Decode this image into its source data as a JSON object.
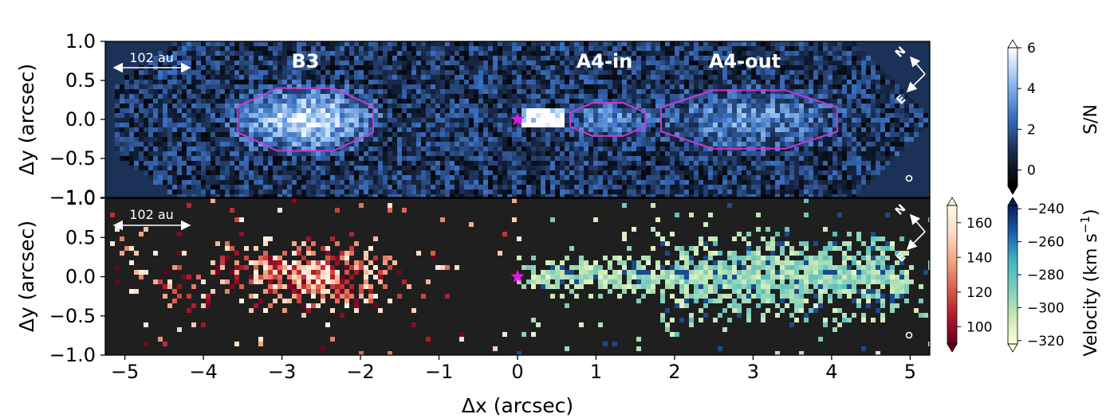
{
  "chart_data": [
    {
      "type": "heatmap",
      "panel": "top",
      "ylabel": "Δy (arcsec)",
      "xlim": [
        -5.25,
        5.25
      ],
      "ylim": [
        -1.0,
        1.0
      ],
      "yticks": [
        "1.0",
        "0.5",
        "0.0",
        "−0.5",
        "−1.0"
      ],
      "colorbar": {
        "label": "S/N",
        "range": [
          -0.8,
          6
        ],
        "ticks": [
          "6",
          "4",
          "2",
          "0"
        ],
        "tick_values": [
          6,
          4,
          2,
          0
        ],
        "colors": [
          "#000000",
          "#1a2b4c",
          "#3a6fc0",
          "#8fbcef",
          "#ffffff"
        ]
      },
      "regions": [
        {
          "label": "B3",
          "x_center": -2.7,
          "x_half_width": 0.9,
          "y_half_height": 0.42
        },
        {
          "label": "A4-in",
          "x_center": 1.15,
          "x_half_width": 0.5,
          "y_half_height": 0.22
        },
        {
          "label": "A4-out",
          "x_center": 2.95,
          "x_half_width": 1.17,
          "y_half_height": 0.39
        }
      ],
      "scale_bar": "102 au",
      "compass": {
        "north": "N",
        "east": "E"
      },
      "star": {
        "x": 0.0,
        "y": 0.0
      }
    },
    {
      "type": "heatmap",
      "panel": "bottom",
      "xlabel": "Δx (arcsec)",
      "ylabel": "Δy (arcsec)",
      "xlim": [
        -5.25,
        5.25
      ],
      "ylim": [
        -1.0,
        1.0
      ],
      "xticks": [
        "−5",
        "−4",
        "−3",
        "−2",
        "−1",
        "0",
        "1",
        "2",
        "3",
        "4",
        "5"
      ],
      "xtick_values": [
        -5,
        -4,
        -3,
        -2,
        -1,
        0,
        1,
        2,
        3,
        4,
        5
      ],
      "yticks": [
        "1.0",
        "0.5",
        "0.0",
        "−0.5",
        "−1.0"
      ],
      "colorbar_redshifted": {
        "range": [
          90,
          170
        ],
        "ticks": [
          "160",
          "140",
          "120",
          "100"
        ],
        "tick_values": [
          160,
          140,
          120,
          100
        ],
        "colors": [
          "#67001f",
          "#b2182b",
          "#d6604d",
          "#f4a582",
          "#fddbc7",
          "#fff8e6"
        ]
      },
      "colorbar_blueshifted": {
        "label": "Velocity (km s",
        "label_sup": "−1",
        "label_end": ")",
        "range": [
          -322,
          -238
        ],
        "ticks": [
          "−240",
          "−260",
          "−280",
          "−300",
          "−320"
        ],
        "tick_values": [
          -240,
          -260,
          -280,
          -300,
          -320
        ],
        "colors": [
          "#ffffd9",
          "#c7e9b4",
          "#7fcdbb",
          "#41b6c4",
          "#225ea8",
          "#081d58"
        ]
      },
      "scale_bar": "102 au",
      "compass": {
        "north": "N",
        "east": "E"
      },
      "star": {
        "x": 0.0,
        "y": 0.0
      }
    }
  ]
}
